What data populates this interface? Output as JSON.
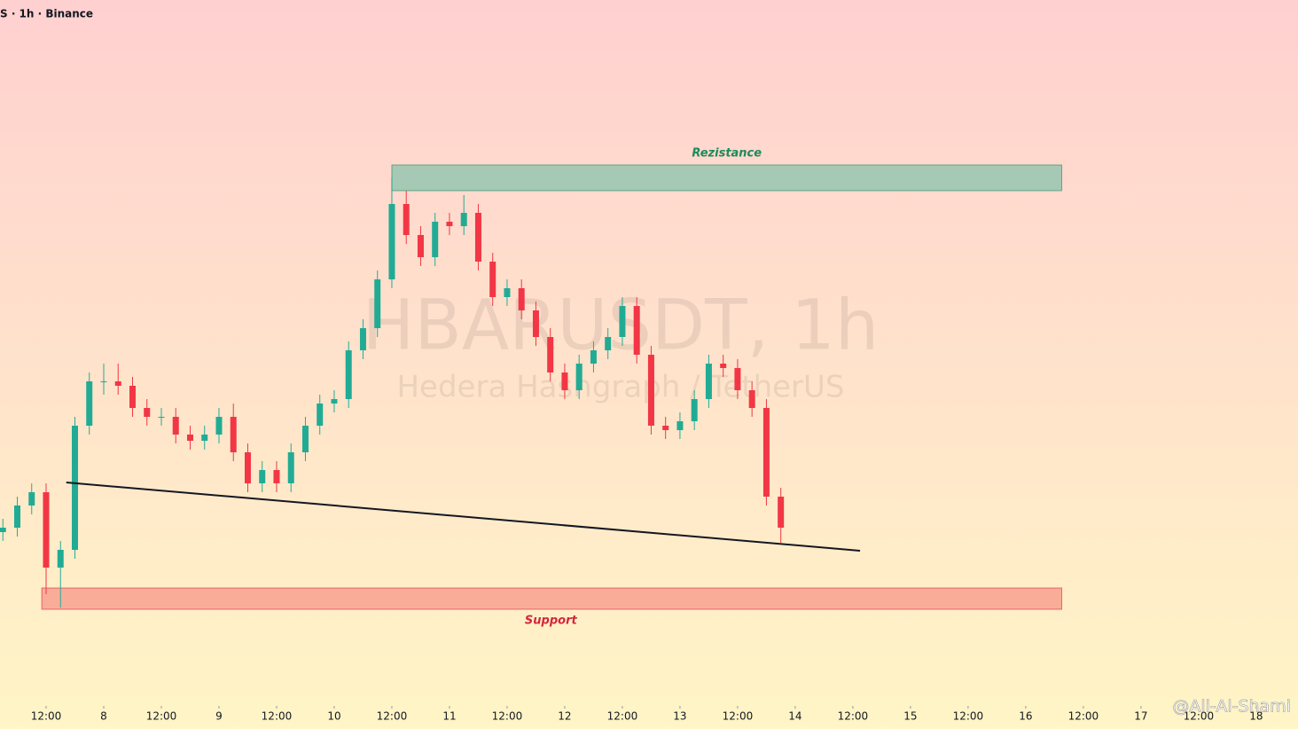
{
  "chart_data": {
    "type": "candlestick",
    "header": "S · 1h · Binance",
    "watermark_title": "HBARUSDT, 1h",
    "watermark_subtitle": "Hedera Hashgraph / TetherUS",
    "credit": "@Ali-Al-Shami",
    "up_color": "#22ab94",
    "down_color": "#f23645",
    "xlim": [
      -9.6,
      260.7
    ],
    "ylim": [
      0,
      800
    ],
    "xticks": [
      {
        "value": 0,
        "label": "12:00"
      },
      {
        "value": 12,
        "label": "8"
      },
      {
        "value": 24,
        "label": "12:00"
      },
      {
        "value": 36,
        "label": "9"
      },
      {
        "value": 48,
        "label": "12:00"
      },
      {
        "value": 60,
        "label": "10"
      },
      {
        "value": 72,
        "label": "12:00"
      },
      {
        "value": 84,
        "label": "11"
      },
      {
        "value": 96,
        "label": "12:00"
      },
      {
        "value": 108,
        "label": "12"
      },
      {
        "value": 120,
        "label": "12:00"
      },
      {
        "value": 132,
        "label": "13"
      },
      {
        "value": 144,
        "label": "12:00"
      },
      {
        "value": 156,
        "label": "14"
      },
      {
        "value": 168,
        "label": "12:00"
      },
      {
        "value": 180,
        "label": "15"
      },
      {
        "value": 192,
        "label": "12:00"
      },
      {
        "value": 204,
        "label": "16"
      },
      {
        "value": 216,
        "label": "12:00"
      },
      {
        "value": 228,
        "label": "17"
      },
      {
        "value": 240,
        "label": "12:00"
      },
      {
        "value": 252,
        "label": "18"
      }
    ],
    "x": [
      -9,
      -6,
      -3,
      0,
      3,
      6,
      9,
      12,
      15,
      18,
      21,
      24,
      27,
      30,
      33,
      36,
      39,
      42,
      45,
      48,
      51,
      54,
      57,
      60,
      63,
      66,
      69,
      72,
      75,
      78,
      81,
      84,
      87,
      90,
      93,
      96,
      99,
      102,
      105,
      108,
      111,
      114,
      117,
      120,
      123,
      126,
      129,
      132,
      135,
      138,
      141,
      144,
      147,
      150,
      153
    ],
    "open": [
      200,
      205,
      230,
      245,
      160,
      180,
      320,
      370,
      370,
      365,
      340,
      330,
      330,
      310,
      303,
      310,
      330,
      290,
      255,
      270,
      255,
      290,
      320,
      345,
      350,
      405,
      430,
      485,
      570,
      535,
      510,
      550,
      545,
      560,
      505,
      465,
      475,
      450,
      420,
      380,
      360,
      390,
      405,
      420,
      455,
      400,
      320,
      315,
      325,
      350,
      390,
      385,
      360,
      340,
      240
    ],
    "high": [
      215,
      240,
      255,
      255,
      190,
      330,
      380,
      390,
      390,
      375,
      350,
      340,
      340,
      320,
      320,
      340,
      345,
      300,
      280,
      280,
      300,
      330,
      355,
      360,
      415,
      440,
      495,
      600,
      585,
      545,
      560,
      560,
      580,
      570,
      515,
      485,
      485,
      460,
      430,
      390,
      400,
      415,
      430,
      465,
      465,
      410,
      330,
      335,
      360,
      400,
      400,
      395,
      370,
      350,
      250
    ],
    "low": [
      190,
      195,
      220,
      130,
      115,
      170,
      310,
      355,
      355,
      330,
      320,
      320,
      300,
      293,
      293,
      300,
      280,
      245,
      245,
      245,
      245,
      280,
      310,
      335,
      340,
      395,
      420,
      475,
      525,
      500,
      500,
      535,
      535,
      495,
      455,
      455,
      440,
      410,
      370,
      350,
      350,
      380,
      395,
      410,
      390,
      310,
      305,
      305,
      315,
      340,
      375,
      350,
      330,
      230,
      188
    ],
    "close": [
      205,
      230,
      245,
      160,
      180,
      320,
      370,
      370,
      365,
      340,
      330,
      330,
      310,
      303,
      310,
      330,
      290,
      255,
      270,
      255,
      290,
      320,
      345,
      350,
      405,
      430,
      485,
      570,
      535,
      510,
      550,
      545,
      560,
      505,
      465,
      475,
      450,
      420,
      380,
      360,
      390,
      405,
      420,
      455,
      400,
      320,
      315,
      325,
      350,
      390,
      385,
      360,
      340,
      240,
      205
    ],
    "zones": [
      {
        "label": "Rezistance",
        "x": [
          72,
          211.5
        ],
        "y": [
          585,
          614
        ],
        "color": "#a5c9b4",
        "label_color": "#1e8a5a"
      },
      {
        "label": "Support",
        "x": [
          -0.9,
          211.5
        ],
        "y": [
          113,
          137
        ],
        "color": "#f9ad99",
        "label_color": "#d3263a"
      }
    ],
    "trendline": {
      "x": [
        4.2,
        169.5
      ],
      "y": [
        256,
        179
      ],
      "color": "#131722"
    }
  }
}
